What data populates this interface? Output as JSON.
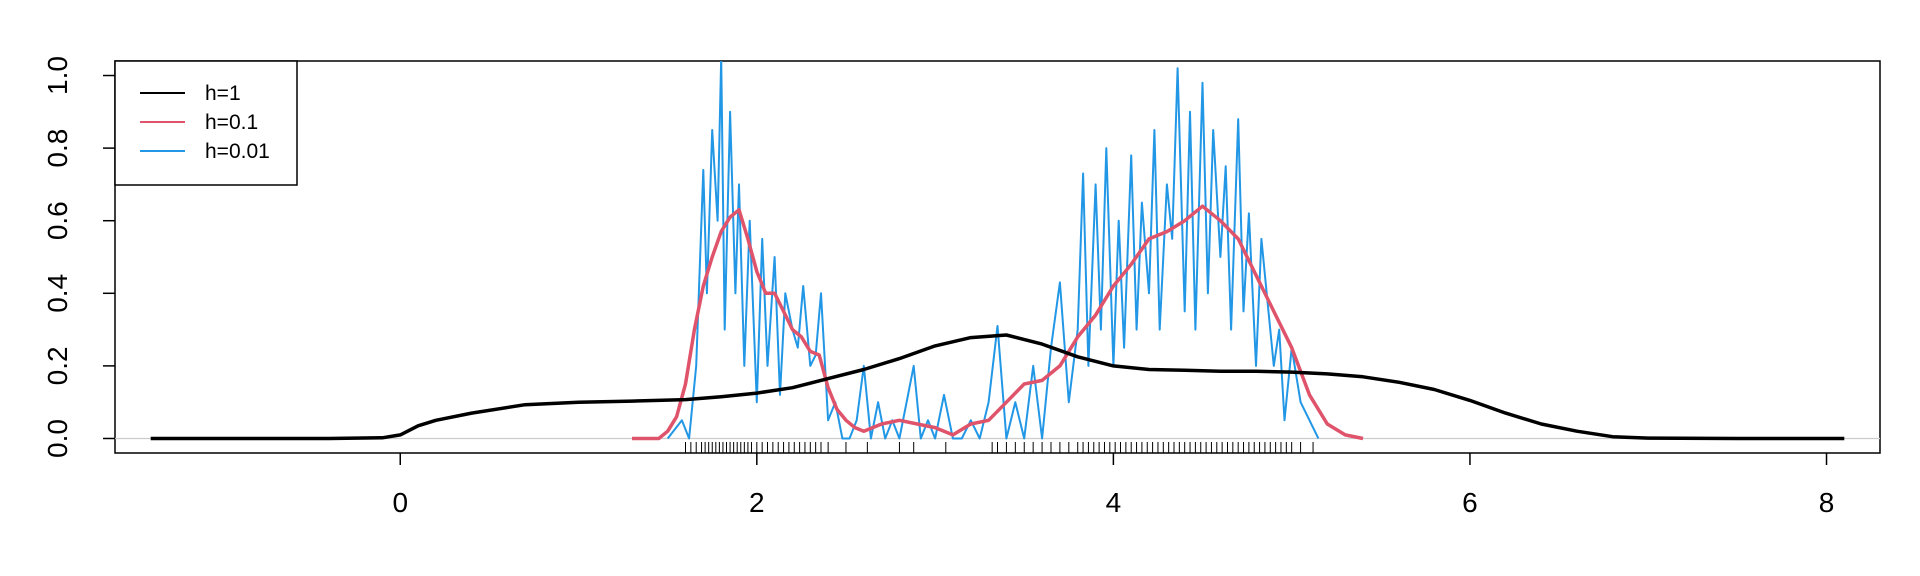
{
  "chart_data": {
    "type": "line",
    "title": "",
    "xlabel": "",
    "ylabel": "",
    "xlim": [
      -1.6,
      8.3
    ],
    "ylim": [
      -0.04,
      1.04
    ],
    "xticks": [
      "0",
      "2",
      "4",
      "6",
      "8"
    ],
    "yticks": [
      "0.0",
      "0.2",
      "0.4",
      "0.6",
      "0.8",
      "1.0"
    ],
    "legend": {
      "position": "top-left",
      "entries": [
        "h=1",
        "h=0.1",
        "h=0.01"
      ]
    },
    "colors": {
      "h1": "#000000",
      "h01": "#DF536B",
      "h001": "#2297E6",
      "baseline": "#cccccc"
    },
    "series": [
      {
        "name": "h=1",
        "x": [
          -1.4,
          -0.4,
          -0.1,
          0.0,
          0.1,
          0.2,
          0.4,
          0.7,
          1.0,
          1.3,
          1.6,
          1.8,
          2.0,
          2.2,
          2.4,
          2.6,
          2.8,
          3.0,
          3.2,
          3.4,
          3.6,
          3.8,
          4.0,
          4.2,
          4.4,
          4.6,
          4.8,
          5.0,
          5.2,
          5.4,
          5.6,
          5.8,
          6.0,
          6.2,
          6.4,
          6.6,
          6.8,
          7.0,
          7.5,
          8.1
        ],
        "y": [
          0.0,
          0.0,
          0.002,
          0.01,
          0.035,
          0.05,
          0.07,
          0.093,
          0.1,
          0.103,
          0.107,
          0.115,
          0.125,
          0.14,
          0.165,
          0.19,
          0.22,
          0.255,
          0.278,
          0.285,
          0.26,
          0.225,
          0.2,
          0.19,
          0.188,
          0.185,
          0.185,
          0.183,
          0.178,
          0.17,
          0.155,
          0.135,
          0.105,
          0.07,
          0.04,
          0.02,
          0.005,
          0.001,
          0.0,
          0.0
        ]
      },
      {
        "name": "h=0.1",
        "x": [
          1.3,
          1.45,
          1.5,
          1.55,
          1.6,
          1.65,
          1.7,
          1.75,
          1.8,
          1.85,
          1.9,
          1.95,
          2.0,
          2.05,
          2.1,
          2.15,
          2.2,
          2.25,
          2.3,
          2.35,
          2.4,
          2.45,
          2.5,
          2.55,
          2.6,
          2.7,
          2.8,
          2.9,
          3.0,
          3.1,
          3.2,
          3.3,
          3.4,
          3.5,
          3.6,
          3.7,
          3.8,
          3.9,
          4.0,
          4.1,
          4.2,
          4.3,
          4.4,
          4.5,
          4.6,
          4.7,
          4.8,
          4.9,
          5.0,
          5.1,
          5.2,
          5.3,
          5.4
        ],
        "y": [
          0.0,
          0.0,
          0.02,
          0.06,
          0.15,
          0.3,
          0.42,
          0.5,
          0.57,
          0.61,
          0.63,
          0.55,
          0.46,
          0.4,
          0.4,
          0.35,
          0.3,
          0.28,
          0.24,
          0.23,
          0.14,
          0.08,
          0.05,
          0.03,
          0.02,
          0.04,
          0.05,
          0.04,
          0.03,
          0.01,
          0.04,
          0.05,
          0.1,
          0.15,
          0.16,
          0.2,
          0.28,
          0.34,
          0.42,
          0.48,
          0.55,
          0.57,
          0.6,
          0.64,
          0.6,
          0.55,
          0.45,
          0.35,
          0.25,
          0.12,
          0.04,
          0.01,
          0.0
        ]
      },
      {
        "name": "h=0.01",
        "x": [
          1.5,
          1.58,
          1.62,
          1.66,
          1.7,
          1.72,
          1.75,
          1.78,
          1.8,
          1.82,
          1.85,
          1.88,
          1.9,
          1.93,
          1.96,
          2.0,
          2.03,
          2.06,
          2.1,
          2.13,
          2.16,
          2.2,
          2.23,
          2.26,
          2.3,
          2.33,
          2.36,
          2.4,
          2.44,
          2.48,
          2.52,
          2.56,
          2.6,
          2.64,
          2.68,
          2.72,
          2.76,
          2.8,
          2.84,
          2.88,
          2.92,
          2.96,
          3.0,
          3.05,
          3.1,
          3.15,
          3.2,
          3.25,
          3.3,
          3.35,
          3.4,
          3.45,
          3.5,
          3.55,
          3.6,
          3.65,
          3.7,
          3.75,
          3.8,
          3.83,
          3.86,
          3.9,
          3.93,
          3.96,
          4.0,
          4.03,
          4.06,
          4.1,
          4.13,
          4.16,
          4.2,
          4.23,
          4.26,
          4.3,
          4.33,
          4.36,
          4.4,
          4.43,
          4.46,
          4.5,
          4.53,
          4.56,
          4.6,
          4.63,
          4.66,
          4.7,
          4.73,
          4.76,
          4.8,
          4.83,
          4.86,
          4.9,
          4.93,
          4.96,
          5.0,
          5.05,
          5.1,
          5.15
        ],
        "y": [
          0.0,
          0.05,
          0.0,
          0.2,
          0.74,
          0.4,
          0.85,
          0.6,
          1.05,
          0.3,
          0.9,
          0.4,
          0.7,
          0.2,
          0.6,
          0.1,
          0.55,
          0.2,
          0.5,
          0.12,
          0.4,
          0.3,
          0.25,
          0.42,
          0.2,
          0.23,
          0.4,
          0.05,
          0.1,
          0.0,
          0.0,
          0.05,
          0.2,
          0.0,
          0.1,
          0.0,
          0.05,
          0.0,
          0.1,
          0.2,
          0.0,
          0.05,
          0.0,
          0.12,
          0.0,
          0.0,
          0.05,
          0.0,
          0.1,
          0.31,
          0.0,
          0.1,
          0.0,
          0.2,
          0.0,
          0.25,
          0.43,
          0.1,
          0.3,
          0.73,
          0.2,
          0.7,
          0.3,
          0.8,
          0.2,
          0.6,
          0.25,
          0.78,
          0.3,
          0.65,
          0.4,
          0.85,
          0.3,
          0.7,
          0.55,
          1.02,
          0.35,
          0.9,
          0.3,
          0.98,
          0.4,
          0.85,
          0.5,
          0.75,
          0.3,
          0.88,
          0.35,
          0.62,
          0.2,
          0.55,
          0.4,
          0.2,
          0.3,
          0.05,
          0.25,
          0.1,
          0.05,
          0.0
        ]
      }
    ],
    "rug": [
      1.6,
      1.63,
      1.66,
      1.69,
      1.71,
      1.73,
      1.75,
      1.77,
      1.79,
      1.81,
      1.83,
      1.85,
      1.87,
      1.89,
      1.91,
      1.93,
      1.95,
      1.97,
      2.0,
      2.03,
      2.06,
      2.09,
      2.12,
      2.15,
      2.18,
      2.21,
      2.24,
      2.27,
      2.3,
      2.33,
      2.36,
      2.4,
      2.5,
      2.62,
      2.8,
      2.88,
      3.06,
      3.32,
      3.35,
      3.4,
      3.45,
      3.5,
      3.55,
      3.6,
      3.65,
      3.7,
      3.75,
      3.8,
      3.83,
      3.86,
      3.89,
      3.92,
      3.95,
      3.98,
      4.01,
      4.04,
      4.07,
      4.1,
      4.13,
      4.16,
      4.19,
      4.22,
      4.25,
      4.28,
      4.31,
      4.34,
      4.37,
      4.4,
      4.43,
      4.46,
      4.49,
      4.52,
      4.55,
      4.58,
      4.61,
      4.64,
      4.67,
      4.7,
      4.73,
      4.76,
      4.79,
      4.82,
      4.85,
      4.88,
      4.91,
      4.94,
      4.97,
      5.0,
      5.05,
      5.12
    ]
  }
}
